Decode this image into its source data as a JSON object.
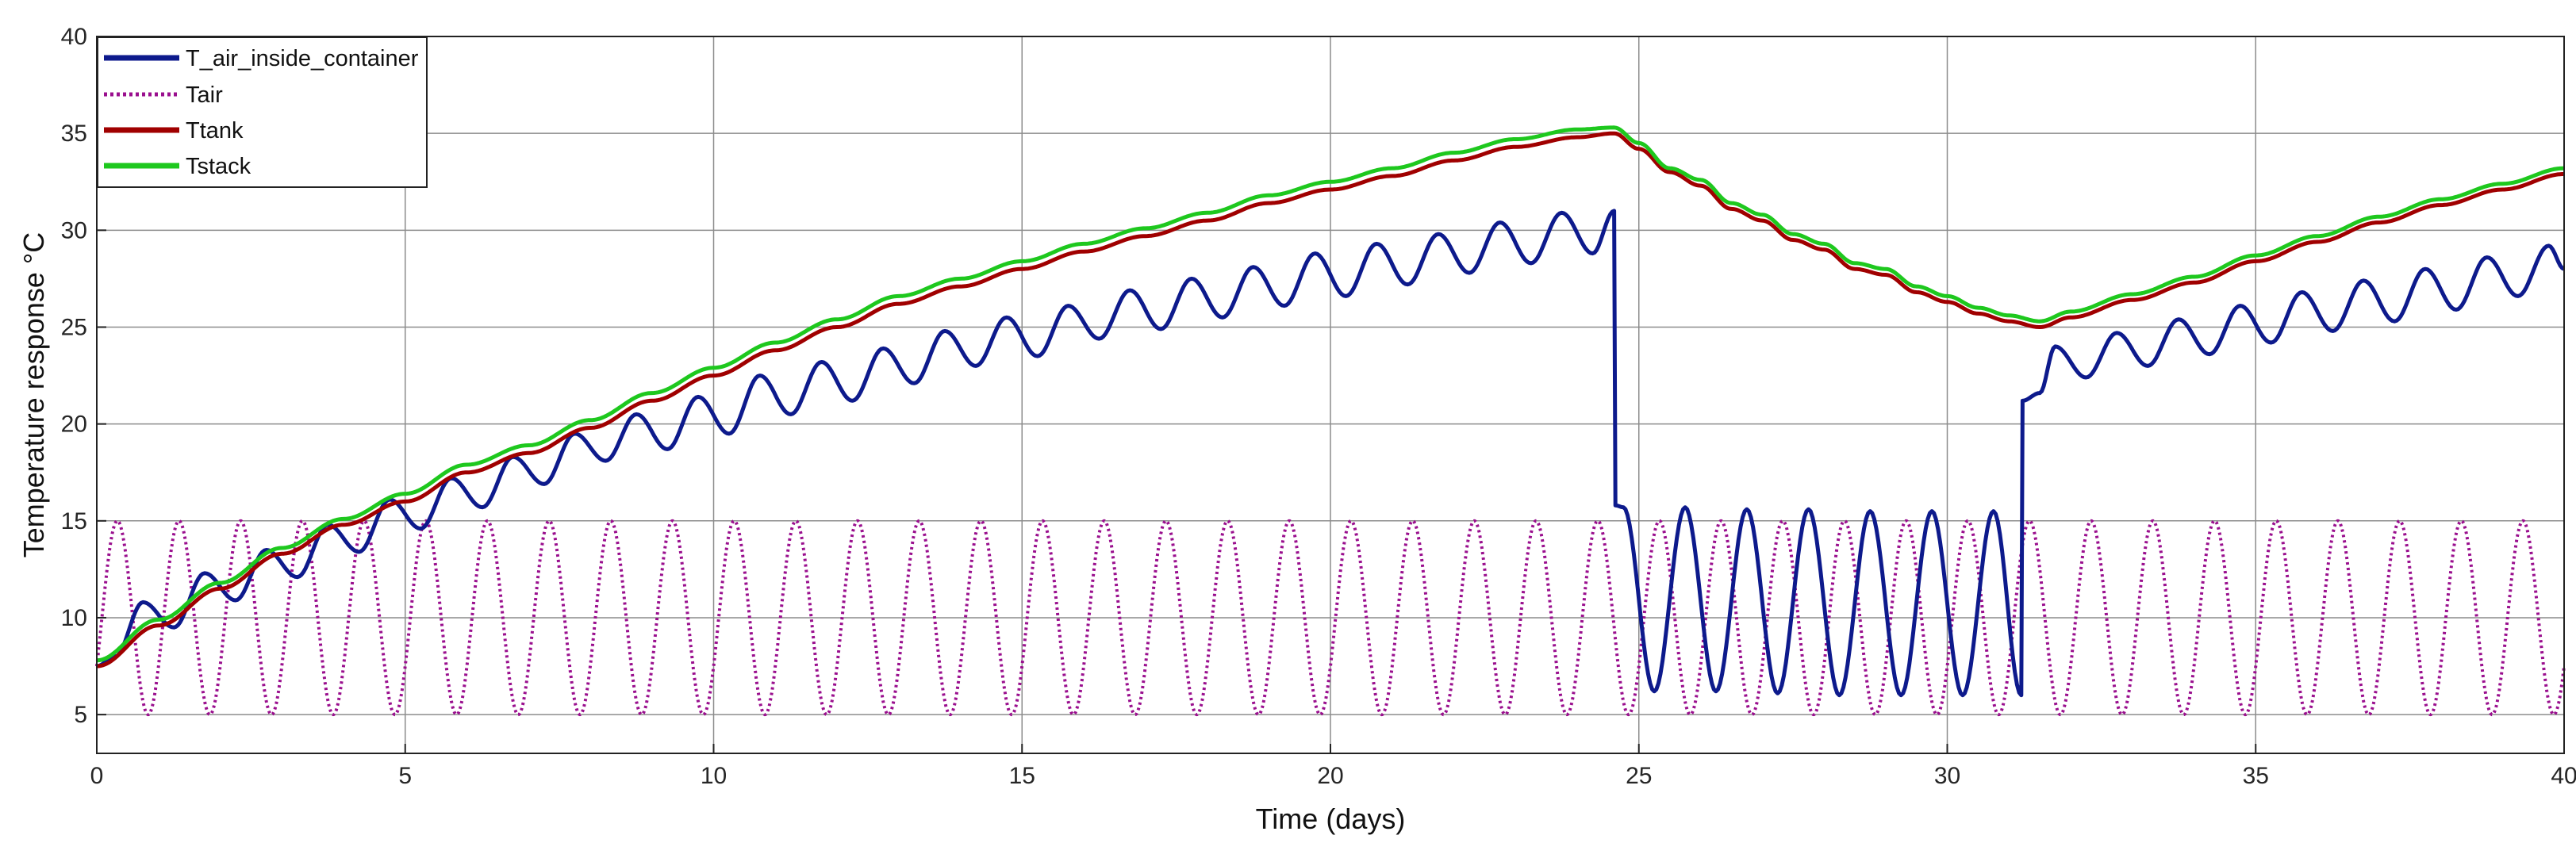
{
  "chart_data": {
    "type": "line",
    "title": "",
    "xlabel": "Time (days)",
    "ylabel": "Temperature response °C",
    "xlim": [
      0,
      40
    ],
    "ylim": [
      3,
      40
    ],
    "xticks": [
      0,
      5,
      10,
      15,
      20,
      25,
      30,
      35,
      40
    ],
    "yticks": [
      5,
      10,
      15,
      20,
      25,
      30,
      35,
      40
    ],
    "grid": true,
    "legend_position": "top-left",
    "series": [
      {
        "name": "T_air_inside_container",
        "color": "#0d1a8c",
        "style": "solid",
        "x": [
          0,
          0.3,
          0.75,
          1.25,
          1.75,
          2.25,
          2.75,
          3.25,
          3.75,
          4.25,
          4.75,
          5.25,
          5.75,
          6.25,
          6.75,
          7.25,
          7.75,
          8.25,
          8.75,
          9.25,
          9.75,
          10.25,
          10.75,
          11.25,
          11.75,
          12.25,
          12.75,
          13.25,
          13.75,
          14.25,
          14.75,
          15.25,
          15.75,
          16.25,
          16.75,
          17.25,
          17.75,
          18.25,
          18.75,
          19.25,
          19.75,
          20.25,
          20.75,
          21.25,
          21.75,
          22.25,
          22.75,
          23.25,
          23.75,
          24.25,
          24.6,
          24.62,
          24.75,
          25.25,
          25.75,
          26.25,
          26.75,
          27.25,
          27.75,
          28.25,
          28.75,
          29.25,
          29.75,
          30.25,
          30.75,
          31.2,
          31.22,
          31.5,
          31.75,
          32.25,
          32.75,
          33.25,
          33.75,
          34.25,
          34.75,
          35.25,
          35.75,
          36.25,
          36.75,
          37.25,
          37.75,
          38.25,
          38.75,
          39.25,
          39.75,
          40
        ],
        "y": [
          7.5,
          8,
          10.8,
          9.5,
          12.3,
          10.9,
          13.5,
          12.1,
          14.8,
          13.4,
          16.1,
          14.6,
          17.2,
          15.7,
          18.3,
          16.9,
          19.5,
          18.1,
          20.5,
          18.7,
          21.4,
          19.5,
          22.5,
          20.5,
          23.2,
          21.2,
          23.9,
          22.1,
          24.8,
          23,
          25.5,
          23.5,
          26.1,
          24.4,
          26.9,
          24.9,
          27.5,
          25.5,
          28.1,
          26.1,
          28.8,
          26.6,
          29.3,
          27.2,
          29.8,
          27.8,
          30.4,
          28.3,
          30.9,
          28.8,
          31,
          15.8,
          15.7,
          6.2,
          15.7,
          6.2,
          15.6,
          6.1,
          15.6,
          6,
          15.5,
          6,
          15.5,
          6,
          15.5,
          6,
          21.2,
          21.6,
          24,
          22.4,
          24.7,
          23,
          25.4,
          23.6,
          26.1,
          24.2,
          26.8,
          24.8,
          27.4,
          25.3,
          28,
          25.9,
          28.6,
          26.6,
          29.2,
          28
        ]
      },
      {
        "name": "Tair",
        "color": "#9a0f8e",
        "style": "dotted",
        "period_days": 1,
        "min": 5,
        "max": 15,
        "start_value": 7.5,
        "first_peak_day": 0.5
      },
      {
        "name": "Ttank",
        "color": "#a00000",
        "style": "solid",
        "x": [
          0,
          1,
          2,
          3,
          4,
          5,
          6,
          7,
          8,
          9,
          10,
          11,
          12,
          13,
          14,
          15,
          16,
          17,
          18,
          19,
          20,
          21,
          22,
          23,
          24,
          24.6,
          25,
          25.5,
          26,
          26.5,
          27,
          27.5,
          28,
          28.5,
          29,
          29.5,
          30,
          30.5,
          31,
          31.5,
          32,
          33,
          34,
          35,
          36,
          37,
          38,
          39,
          40
        ],
        "y": [
          7.5,
          9.6,
          11.5,
          13.3,
          14.8,
          16,
          17.5,
          18.5,
          19.8,
          21.2,
          22.5,
          23.8,
          25,
          26.2,
          27.1,
          28,
          28.9,
          29.7,
          30.5,
          31.4,
          32.1,
          32.8,
          33.6,
          34.3,
          34.8,
          35,
          34.2,
          33,
          32.3,
          31.1,
          30.5,
          29.5,
          29,
          28,
          27.7,
          26.8,
          26.3,
          25.7,
          25.3,
          25,
          25.5,
          26.4,
          27.3,
          28.4,
          29.4,
          30.4,
          31.3,
          32.1,
          32.9
        ]
      },
      {
        "name": "Tstack",
        "color": "#1ec81e",
        "style": "solid",
        "x": [
          0,
          1,
          2,
          3,
          4,
          5,
          6,
          7,
          8,
          9,
          10,
          11,
          12,
          13,
          14,
          15,
          16,
          17,
          18,
          19,
          20,
          21,
          22,
          23,
          24,
          24.6,
          25,
          25.5,
          26,
          26.5,
          27,
          27.5,
          28,
          28.5,
          29,
          29.5,
          30,
          30.5,
          31,
          31.5,
          32,
          33,
          34,
          35,
          36,
          37,
          38,
          39,
          40
        ],
        "y": [
          7.8,
          9.9,
          11.8,
          13.6,
          15.1,
          16.4,
          17.9,
          18.9,
          20.2,
          21.6,
          22.9,
          24.2,
          25.4,
          26.6,
          27.5,
          28.4,
          29.3,
          30.1,
          30.9,
          31.8,
          32.5,
          33.2,
          34,
          34.7,
          35.2,
          35.3,
          34.5,
          33.2,
          32.6,
          31.4,
          30.8,
          29.8,
          29.3,
          28.3,
          28,
          27.1,
          26.6,
          26,
          25.6,
          25.3,
          25.8,
          26.7,
          27.6,
          28.7,
          29.7,
          30.7,
          31.6,
          32.4,
          33.2
        ]
      }
    ]
  }
}
